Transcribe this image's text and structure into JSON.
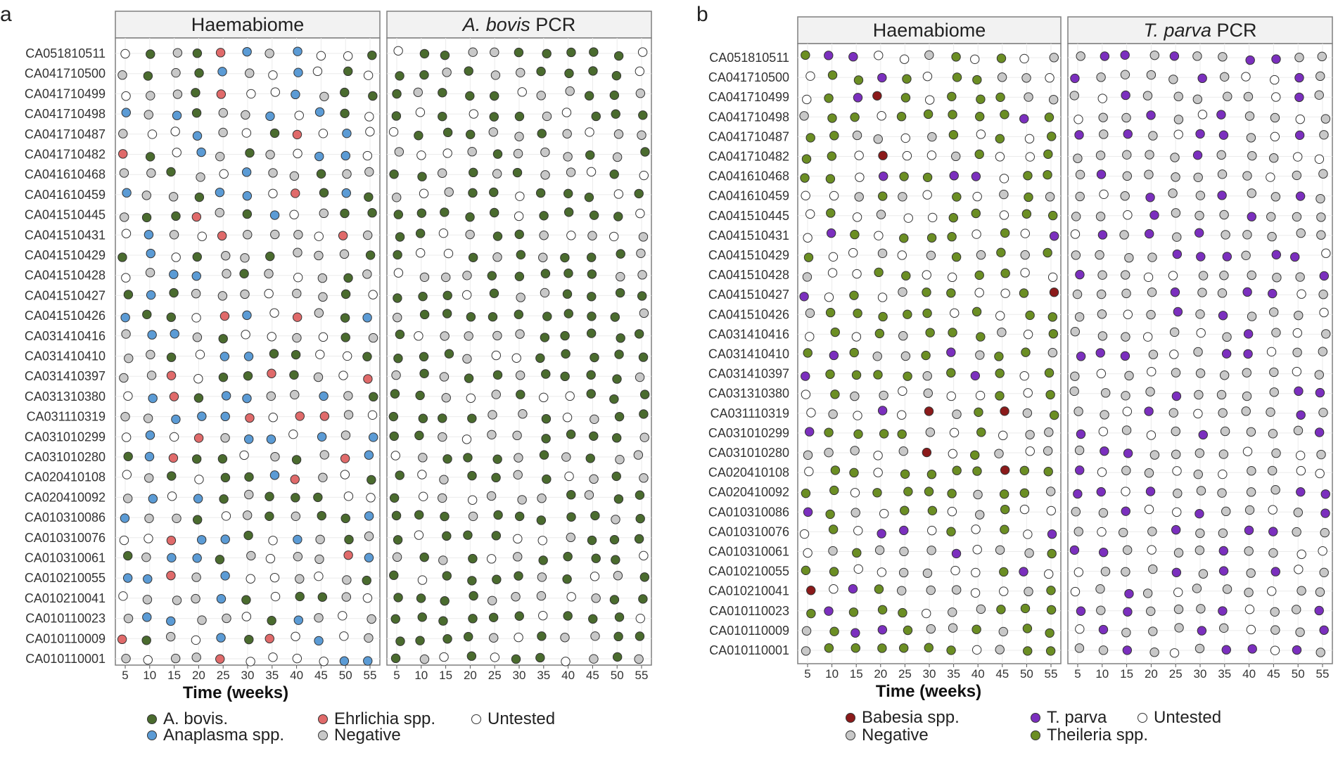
{
  "chart_data": [
    {
      "type": "scatter",
      "panel_label": "a",
      "xlabel": "Time (weeks)",
      "x_ticks": [
        5,
        10,
        15,
        20,
        25,
        30,
        35,
        40,
        45,
        50,
        55
      ],
      "xlim": [
        5,
        55
      ],
      "grid": true,
      "facets": [
        {
          "title": "Haemabiome"
        },
        {
          "title_italic": "A. bovis",
          "title_rest": " PCR"
        }
      ],
      "categories": [
        "CA051810511",
        "CA041710500",
        "CA041710499",
        "CA041710498",
        "CA041710487",
        "CA041710482",
        "CA041610468",
        "CA041610459",
        "CA041510445",
        "CA041510431",
        "CA041510429",
        "CA041510428",
        "CA041510427",
        "CA041510426",
        "CA031410416",
        "CA031410410",
        "CA031410397",
        "CA031310380",
        "CA031110319",
        "CA031010299",
        "CA031010280",
        "CA020410108",
        "CA020410092",
        "CA010310086",
        "CA010310076",
        "CA010310061",
        "CA010210055",
        "CA010210041",
        "CA010110023",
        "CA010110009",
        "CA010110001"
      ],
      "legend": [
        {
          "label": "A. bovis.",
          "color": "#4a6b2e"
        },
        {
          "label": "Ehrlichia spp.",
          "color": "#e06a6a"
        },
        {
          "label": "Untested",
          "color": "#ffffff"
        },
        {
          "label": "Anaplasma spp.",
          "color": "#5b9bd5"
        },
        {
          "label": "Negative",
          "color": "#c8c8c8"
        }
      ]
    },
    {
      "type": "scatter",
      "panel_label": "b",
      "xlabel": "Time (weeks)",
      "x_ticks": [
        5,
        10,
        15,
        20,
        25,
        30,
        35,
        40,
        45,
        50,
        55
      ],
      "xlim": [
        5,
        55
      ],
      "grid": true,
      "facets": [
        {
          "title": "Haemabiome"
        },
        {
          "title_italic": "T. parva",
          "title_rest": " PCR"
        }
      ],
      "categories": [
        "CA051810511",
        "CA041710500",
        "CA041710499",
        "CA041710498",
        "CA041710487",
        "CA041710482",
        "CA041610468",
        "CA041610459",
        "CA041510445",
        "CA041510431",
        "CA041510429",
        "CA041510428",
        "CA041510427",
        "CA041510426",
        "CA031410416",
        "CA031410410",
        "CA031410397",
        "CA031310380",
        "CA031110319",
        "CA031010299",
        "CA031010280",
        "CA020410108",
        "CA020410092",
        "CA010310086",
        "CA010310076",
        "CA010310061",
        "CA010210055",
        "CA010210041",
        "CA010110023",
        "CA010110009",
        "CA010110001"
      ],
      "legend": [
        {
          "label": "Babesia spp.",
          "color": "#8b1a1a"
        },
        {
          "label": "T. parva",
          "color": "#7b2fbe"
        },
        {
          "label": "Untested",
          "color": "#ffffff"
        },
        {
          "label": "Negative",
          "color": "#c8c8c8"
        },
        {
          "label": "Theileria spp.",
          "color": "#6b8e23"
        }
      ]
    }
  ]
}
